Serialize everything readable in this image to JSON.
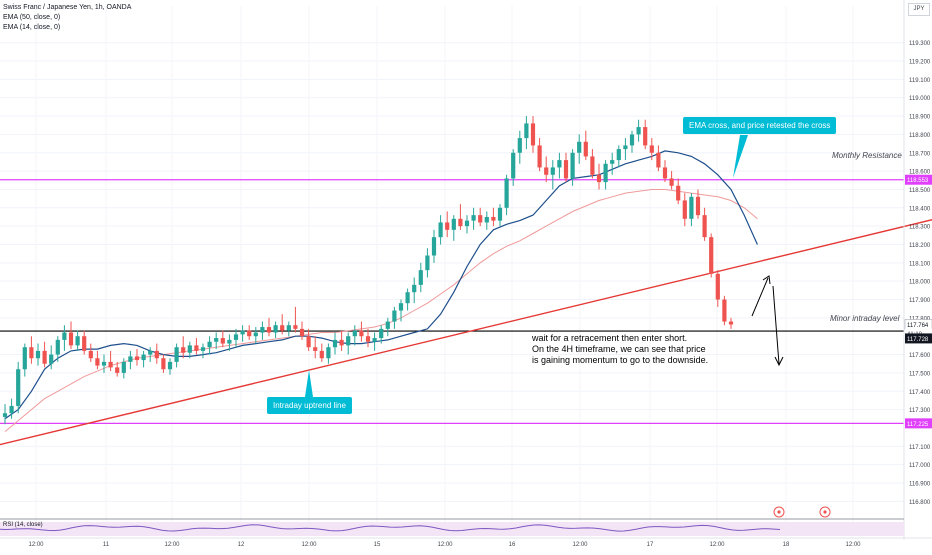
{
  "legend": {
    "symbol": "Swiss Franc / Japanese Yen, 1h, OANDA",
    "ema50": "EMA (50, close, 0)",
    "ema14": "EMA (14, close, 0)"
  },
  "currency_label": "JPY",
  "rsi_label": "RSI (14, close)",
  "annotations": {
    "ema_cross": "EMA cross, and price retested the cross",
    "uptrend": "Intraday uptrend line",
    "monthly_resistance": "Monthly Resistance",
    "minor_intraday": "Minor intraday level",
    "note_lines": [
      "wait for a retracement then enter short.",
      "On the 4H timeframe, we can see that price",
      "is gaining momentum to go to the downside."
    ]
  },
  "colors": {
    "up": "#26a69a",
    "down": "#ef5350",
    "ema14": "#1e4f8c",
    "ema50": "#ef9a9a",
    "resistance": "#e040fb",
    "trendline": "#e53935",
    "callout": "#00bcd4",
    "current_price_tag": "#131722"
  },
  "chart_data": {
    "type": "candlestick",
    "title": "Swiss Franc / Japanese Yen, 1h, OANDA",
    "ylim": [
      116.72,
      119.5
    ],
    "y_ticks": [
      "119.300",
      "119.200",
      "119.100",
      "119.000",
      "118.900",
      "118.800",
      "118.700",
      "118.600",
      "118.500",
      "118.400",
      "118.300",
      "118.200",
      "118.100",
      "118.000",
      "117.900",
      "117.800",
      "117.600",
      "117.500",
      "117.400",
      "117.300",
      "117.100",
      "117.000",
      "116.900",
      "116.800"
    ],
    "x_ticks": [
      "12:00",
      "11",
      "12:00",
      "12",
      "12:00",
      "15",
      "12:00",
      "16",
      "12:00",
      "17",
      "12:00",
      "18",
      "12:00"
    ],
    "price_tags": {
      "monthly_resistance": "118.553",
      "last_price": "117.764",
      "countdown": "41:10",
      "minor_level": "117.728",
      "support": "117.225"
    },
    "levels": {
      "monthly_resistance": 118.553,
      "minor_intraday": 117.728,
      "support": 117.225
    },
    "trendline": {
      "from": [
        0,
        117.12
      ],
      "to": [
        143,
        118.37
      ]
    },
    "candles": [
      [
        117.26,
        117.33,
        117.22,
        117.28
      ],
      [
        117.28,
        117.36,
        117.25,
        117.32
      ],
      [
        117.32,
        117.56,
        117.28,
        117.52
      ],
      [
        117.52,
        117.66,
        117.48,
        117.64
      ],
      [
        117.64,
        117.7,
        117.55,
        117.58
      ],
      [
        117.58,
        117.66,
        117.54,
        117.62
      ],
      [
        117.62,
        117.67,
        117.53,
        117.55
      ],
      [
        117.55,
        117.65,
        117.52,
        117.6
      ],
      [
        117.6,
        117.7,
        117.56,
        117.68
      ],
      [
        117.68,
        117.76,
        117.62,
        117.72
      ],
      [
        117.72,
        117.78,
        117.63,
        117.65
      ],
      [
        117.65,
        117.73,
        117.62,
        117.7
      ],
      [
        117.7,
        117.73,
        117.6,
        117.62
      ],
      [
        117.62,
        117.66,
        117.56,
        117.58
      ],
      [
        117.58,
        117.62,
        117.52,
        117.54
      ],
      [
        117.54,
        117.6,
        117.5,
        117.56
      ],
      [
        117.56,
        117.62,
        117.51,
        117.53
      ],
      [
        117.53,
        117.56,
        117.48,
        117.5
      ],
      [
        117.5,
        117.58,
        117.47,
        117.56
      ],
      [
        117.56,
        117.62,
        117.52,
        117.59
      ],
      [
        117.59,
        117.63,
        117.54,
        117.57
      ],
      [
        117.57,
        117.62,
        117.53,
        117.6
      ],
      [
        117.6,
        117.64,
        117.56,
        117.62
      ],
      [
        117.62,
        117.66,
        117.55,
        117.58
      ],
      [
        117.58,
        117.6,
        117.5,
        117.52
      ],
      [
        117.52,
        117.58,
        117.49,
        117.56
      ],
      [
        117.56,
        117.66,
        117.53,
        117.64
      ],
      [
        117.64,
        117.7,
        117.58,
        117.61
      ],
      [
        117.61,
        117.67,
        117.58,
        117.65
      ],
      [
        117.65,
        117.69,
        117.6,
        117.62
      ],
      [
        117.62,
        117.66,
        117.58,
        117.64
      ],
      [
        117.64,
        117.7,
        117.6,
        117.67
      ],
      [
        117.67,
        117.72,
        117.63,
        117.69
      ],
      [
        117.69,
        117.73,
        117.64,
        117.66
      ],
      [
        117.66,
        117.71,
        117.62,
        117.68
      ],
      [
        117.68,
        117.74,
        117.64,
        117.71
      ],
      [
        117.71,
        117.76,
        117.67,
        117.73
      ],
      [
        117.73,
        117.76,
        117.68,
        117.7
      ],
      [
        117.7,
        117.75,
        117.66,
        117.72
      ],
      [
        117.72,
        117.78,
        117.68,
        117.75
      ],
      [
        117.75,
        117.8,
        117.7,
        117.72
      ],
      [
        117.72,
        117.78,
        117.69,
        117.76
      ],
      [
        117.76,
        117.82,
        117.71,
        117.73
      ],
      [
        117.73,
        117.78,
        117.7,
        117.76
      ],
      [
        117.76,
        117.86,
        117.72,
        117.74
      ],
      [
        117.74,
        117.78,
        117.68,
        117.7
      ],
      [
        117.7,
        117.74,
        117.62,
        117.64
      ],
      [
        117.64,
        117.7,
        117.58,
        117.62
      ],
      [
        117.62,
        117.66,
        117.56,
        117.58
      ],
      [
        117.58,
        117.66,
        117.55,
        117.64
      ],
      [
        117.64,
        117.72,
        117.6,
        117.68
      ],
      [
        117.68,
        117.73,
        117.62,
        117.65
      ],
      [
        117.65,
        117.72,
        117.6,
        117.7
      ],
      [
        117.7,
        117.76,
        117.65,
        117.73
      ],
      [
        117.73,
        117.78,
        117.67,
        117.7
      ],
      [
        117.7,
        117.74,
        117.64,
        117.67
      ],
      [
        117.67,
        117.72,
        117.62,
        117.69
      ],
      [
        117.69,
        117.76,
        117.66,
        117.74
      ],
      [
        117.74,
        117.8,
        117.7,
        117.78
      ],
      [
        117.78,
        117.86,
        117.74,
        117.84
      ],
      [
        117.84,
        117.9,
        117.78,
        117.88
      ],
      [
        117.88,
        117.96,
        117.84,
        117.94
      ],
      [
        117.94,
        118.02,
        117.88,
        117.98
      ],
      [
        117.98,
        118.1,
        117.94,
        118.06
      ],
      [
        118.06,
        118.18,
        118.02,
        118.14
      ],
      [
        118.14,
        118.28,
        118.1,
        118.24
      ],
      [
        118.24,
        118.36,
        118.2,
        118.32
      ],
      [
        118.32,
        118.38,
        118.24,
        118.28
      ],
      [
        118.28,
        118.36,
        118.22,
        118.34
      ],
      [
        118.34,
        118.42,
        118.28,
        118.3
      ],
      [
        118.3,
        118.36,
        118.26,
        118.33
      ],
      [
        118.33,
        118.4,
        118.28,
        118.36
      ],
      [
        118.36,
        118.4,
        118.3,
        118.32
      ],
      [
        118.32,
        118.38,
        118.28,
        118.35
      ],
      [
        118.35,
        118.4,
        118.3,
        118.33
      ],
      [
        118.33,
        118.42,
        118.3,
        118.4
      ],
      [
        118.4,
        118.58,
        118.36,
        118.56
      ],
      [
        118.56,
        118.72,
        118.52,
        118.7
      ],
      [
        118.7,
        118.82,
        118.64,
        118.78
      ],
      [
        118.78,
        118.9,
        118.72,
        118.86
      ],
      [
        118.86,
        118.9,
        118.7,
        118.74
      ],
      [
        118.74,
        118.78,
        118.6,
        118.62
      ],
      [
        118.62,
        118.68,
        118.54,
        118.58
      ],
      [
        118.58,
        118.66,
        118.5,
        118.62
      ],
      [
        118.62,
        118.7,
        118.56,
        118.66
      ],
      [
        118.66,
        118.7,
        118.54,
        118.56
      ],
      [
        118.56,
        118.72,
        118.52,
        118.7
      ],
      [
        118.7,
        118.8,
        118.64,
        118.76
      ],
      [
        118.76,
        118.82,
        118.66,
        118.68
      ],
      [
        118.68,
        118.72,
        118.56,
        118.58
      ],
      [
        118.58,
        118.64,
        118.5,
        118.54
      ],
      [
        118.54,
        118.66,
        118.5,
        118.64
      ],
      [
        118.64,
        118.7,
        118.58,
        118.66
      ],
      [
        118.66,
        118.74,
        118.62,
        118.72
      ],
      [
        118.72,
        118.78,
        118.66,
        118.74
      ],
      [
        118.74,
        118.82,
        118.7,
        118.8
      ],
      [
        118.8,
        118.88,
        118.76,
        118.84
      ],
      [
        118.84,
        118.88,
        118.72,
        118.74
      ],
      [
        118.74,
        118.78,
        118.66,
        118.7
      ],
      [
        118.7,
        118.74,
        118.6,
        118.62
      ],
      [
        118.62,
        118.66,
        118.54,
        118.56
      ],
      [
        118.56,
        118.6,
        118.5,
        118.52
      ],
      [
        118.52,
        118.56,
        118.42,
        118.44
      ],
      [
        118.44,
        118.48,
        118.3,
        118.34
      ],
      [
        118.34,
        118.48,
        118.3,
        118.46
      ],
      [
        118.46,
        118.5,
        118.34,
        118.36
      ],
      [
        118.36,
        118.4,
        118.22,
        118.24
      ],
      [
        118.24,
        118.26,
        118.02,
        118.04
      ],
      [
        118.04,
        118.06,
        117.86,
        117.9
      ],
      [
        117.9,
        117.92,
        117.76,
        117.78
      ],
      [
        117.78,
        117.8,
        117.74,
        117.764
      ]
    ],
    "ema14": [
      117.25,
      117.3,
      117.4,
      117.52,
      117.58,
      117.62,
      117.63,
      117.63,
      117.65,
      117.66,
      117.65,
      117.62,
      117.6,
      117.59,
      117.59,
      117.6,
      117.61,
      117.63,
      117.65,
      117.66,
      117.67,
      117.68,
      117.7,
      117.7,
      117.69,
      117.67,
      117.66,
      117.66,
      117.67,
      117.68,
      117.7,
      117.72,
      117.74,
      117.82,
      117.94,
      118.08,
      118.2,
      118.28,
      118.31,
      118.33,
      118.36,
      118.44,
      118.52,
      118.56,
      118.57,
      118.58,
      118.61,
      118.64,
      118.66,
      118.68,
      118.71,
      118.7,
      118.68,
      118.64,
      118.58,
      118.5,
      118.36,
      118.2
    ],
    "ema50": [
      117.18,
      117.24,
      117.3,
      117.36,
      117.4,
      117.44,
      117.48,
      117.51,
      117.54,
      117.56,
      117.58,
      117.59,
      117.6,
      117.61,
      117.62,
      117.63,
      117.64,
      117.65,
      117.66,
      117.67,
      117.68,
      117.69,
      117.7,
      117.71,
      117.72,
      117.72,
      117.73,
      117.74,
      117.75,
      117.77,
      117.8,
      117.84,
      117.88,
      117.93,
      117.98,
      118.04,
      118.1,
      118.15,
      118.19,
      118.22,
      118.26,
      118.3,
      118.34,
      118.38,
      118.41,
      118.44,
      118.46,
      118.48,
      118.49,
      118.5,
      118.5,
      118.49,
      118.48,
      118.47,
      118.46,
      118.44,
      118.4,
      118.34
    ]
  }
}
